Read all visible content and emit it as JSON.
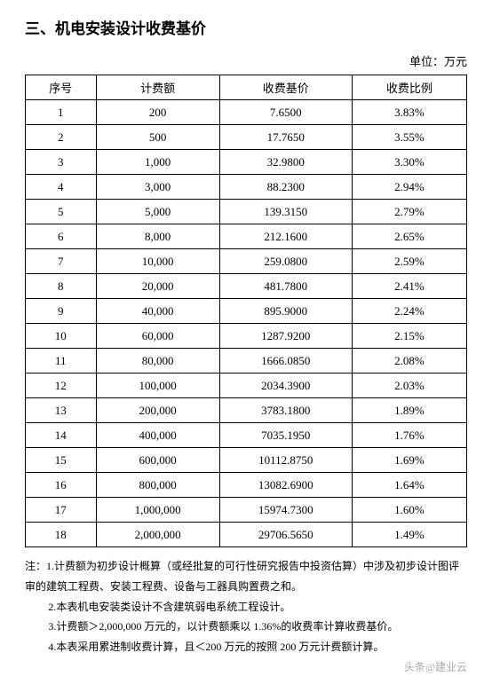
{
  "title": "三、机电安装设计收费基价",
  "unit": "单位：万元",
  "table": {
    "headers": [
      "序号",
      "计费额",
      "收费基价",
      "收费比例"
    ],
    "rows": [
      [
        "1",
        "200",
        "7.6500",
        "3.83%"
      ],
      [
        "2",
        "500",
        "17.7650",
        "3.55%"
      ],
      [
        "3",
        "1,000",
        "32.9800",
        "3.30%"
      ],
      [
        "4",
        "3,000",
        "88.2300",
        "2.94%"
      ],
      [
        "5",
        "5,000",
        "139.3150",
        "2.79%"
      ],
      [
        "6",
        "8,000",
        "212.1600",
        "2.65%"
      ],
      [
        "7",
        "10,000",
        "259.0800",
        "2.59%"
      ],
      [
        "8",
        "20,000",
        "481.7800",
        "2.41%"
      ],
      [
        "9",
        "40,000",
        "895.9000",
        "2.24%"
      ],
      [
        "10",
        "60,000",
        "1287.9200",
        "2.15%"
      ],
      [
        "11",
        "80,000",
        "1666.0850",
        "2.08%"
      ],
      [
        "12",
        "100,000",
        "2034.3900",
        "2.03%"
      ],
      [
        "13",
        "200,000",
        "3783.1800",
        "1.89%"
      ],
      [
        "14",
        "400,000",
        "7035.1950",
        "1.76%"
      ],
      [
        "15",
        "600,000",
        "10112.8750",
        "1.69%"
      ],
      [
        "16",
        "800,000",
        "13082.6900",
        "1.64%"
      ],
      [
        "17",
        "1,000,000",
        "15974.7300",
        "1.60%"
      ],
      [
        "18",
        "2,000,000",
        "29706.5650",
        "1.49%"
      ]
    ]
  },
  "notes": {
    "n1": "注：1.计费额为初步设计概算（或经批复的可行性研究报告中投资估算）中涉及初步设计图评审的建筑工程费、安装工程费、设备与工器具购置费之和。",
    "n2": "2.本表机电安装类设计不含建筑弱电系统工程设计。",
    "n3": "3.计费额＞2,000,000 万元的，以计费额乘以 1.36%的收费率计算收费基价。",
    "n4": "4.本表采用累进制收费计算，且＜200 万元的按照 200 万元计费额计算。"
  },
  "watermark": "头条@建业云"
}
